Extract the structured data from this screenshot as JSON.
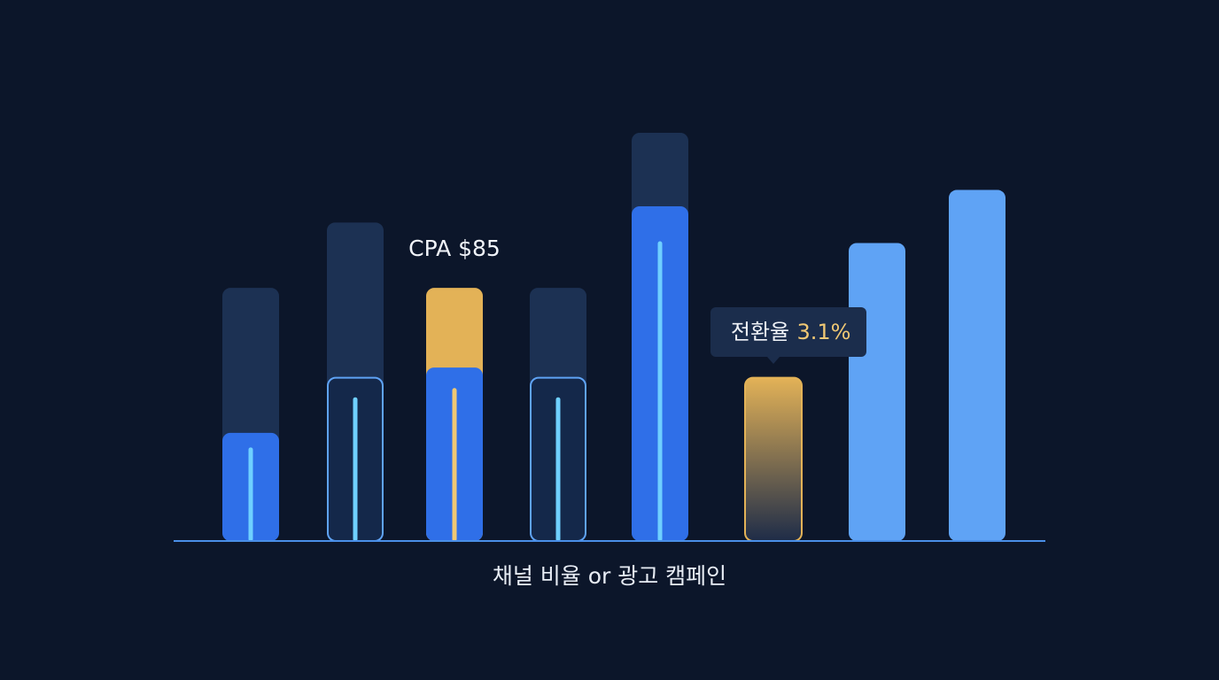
{
  "chart_data": {
    "type": "bar",
    "x_label": "채널 비율 or 광고 캠페인",
    "categories": [
      null,
      null,
      null,
      null,
      null,
      null,
      null,
      null
    ],
    "ylim": [
      0,
      100
    ],
    "series": [
      {
        "values": [
          62,
          78,
          62,
          62,
          100,
          null,
          null,
          null
        ],
        "colors": [
          "#1c3153",
          "#1c3153",
          "#e3b257",
          "#1c3153",
          "#1c3153",
          null,
          null,
          null
        ]
      },
      {
        "values": [
          26.5,
          40,
          42.5,
          40,
          82,
          40,
          73,
          86
        ],
        "colors": [
          "#2f6fe8",
          "#14284a",
          "#2f6fe8",
          "#14284a",
          "#2f6fe8",
          "#e3b257",
          "#5fa3f5",
          "#5fa3f5"
        ],
        "styles": [
          "solid",
          "outline",
          "solid",
          "outline",
          "solid",
          "gradient",
          "solid",
          "solid"
        ]
      }
    ],
    "annotations": [
      {
        "text": "CPA $85"
      },
      {
        "label": "전환율",
        "value": "3.1%"
      }
    ]
  }
}
